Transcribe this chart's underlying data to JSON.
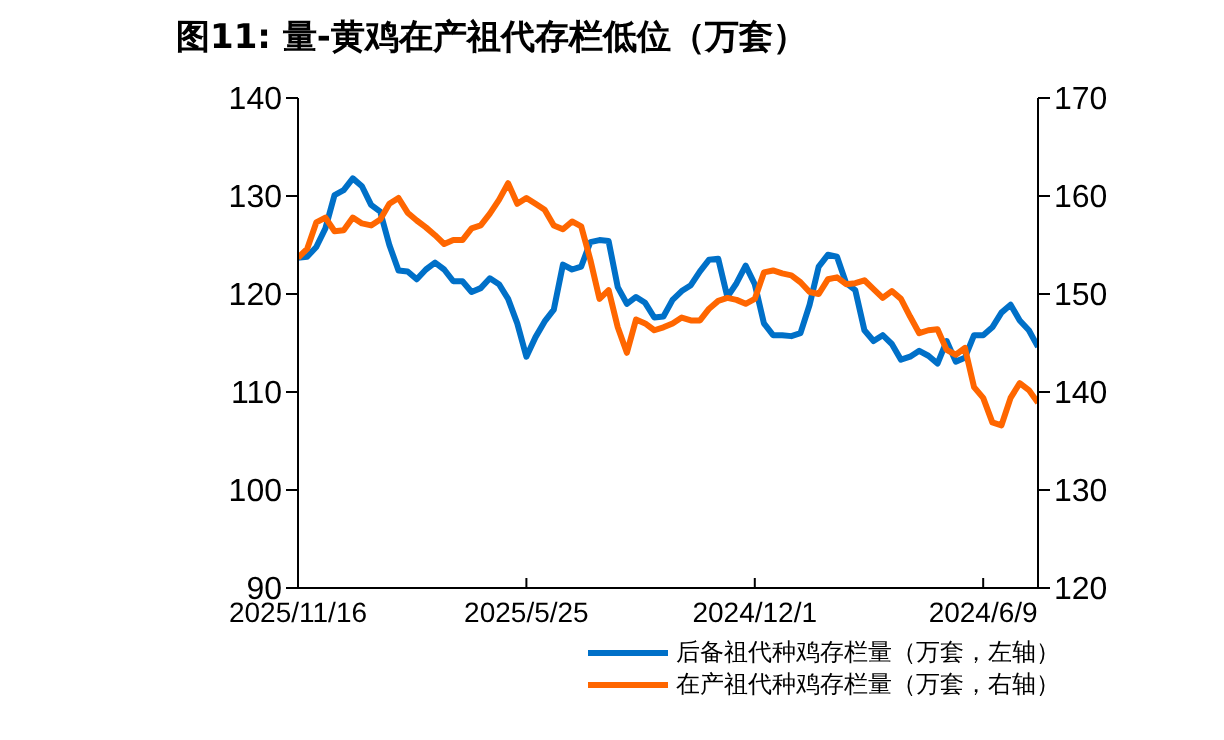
{
  "chart_data": {
    "type": "line",
    "title": "图11:  量-黄鸡在产祖代存栏低位（万套）",
    "categories": [
      "2025/11/16",
      null,
      null,
      null,
      null,
      null,
      null,
      null,
      null,
      null,
      null,
      null,
      null,
      null,
      null,
      null,
      null,
      null,
      null,
      null,
      null,
      null,
      null,
      null,
      null,
      "2025/5/25",
      null,
      null,
      null,
      null,
      null,
      null,
      null,
      null,
      null,
      null,
      null,
      null,
      null,
      null,
      null,
      null,
      null,
      null,
      null,
      null,
      null,
      null,
      null,
      null,
      "2024/12/1",
      null,
      null,
      null,
      null,
      null,
      null,
      null,
      null,
      null,
      null,
      null,
      null,
      null,
      null,
      null,
      null,
      null,
      null,
      null,
      null,
      null,
      null,
      null,
      null,
      "2024/6/9",
      null,
      null,
      null,
      null,
      null,
      null
    ],
    "series": [
      {
        "name": "后备祖代种鸡存栏量（万套，左轴）",
        "color": "#0070c8",
        "values": [
          123.7,
          123.8,
          124.8,
          126.7,
          130.1,
          130.6,
          131.8,
          131.0,
          129.1,
          128.4,
          125.0,
          122.4,
          122.3,
          121.5,
          122.5,
          123.2,
          122.5,
          121.3,
          121.3,
          120.2,
          120.6,
          121.6,
          121.0,
          119.5,
          117.0,
          113.6,
          115.6,
          117.2,
          118.4,
          123.0,
          122.5,
          122.8,
          125.3,
          125.5,
          125.4,
          120.7,
          119.0,
          119.7,
          119.1,
          117.6,
          117.7,
          119.4,
          120.3,
          120.9,
          122.3,
          123.5,
          123.6,
          119.7,
          121.1,
          122.9,
          121.0,
          117.0,
          115.8,
          115.8,
          115.7,
          116.0,
          118.9,
          122.8,
          124.0,
          123.8,
          121.1,
          120.4,
          116.3,
          115.2,
          115.8,
          114.9,
          113.3,
          113.6,
          114.2,
          113.7,
          112.9,
          115.2,
          113.1,
          113.5,
          115.8,
          115.8,
          116.6,
          118.1,
          118.9,
          117.3,
          116.3,
          114.6
        ]
      },
      {
        "name": "在产祖代种鸡存栏量（万套，右轴）",
        "color": "#ff6600",
        "axis": "y2",
        "values": [
          153.7,
          154.6,
          157.3,
          157.8,
          156.4,
          156.5,
          157.8,
          157.2,
          157.0,
          157.6,
          159.2,
          159.8,
          158.3,
          157.5,
          156.8,
          156.0,
          155.1,
          155.5,
          155.5,
          156.7,
          157.0,
          158.2,
          159.6,
          161.3,
          159.2,
          159.8,
          159.2,
          158.6,
          157.0,
          156.6,
          157.4,
          156.9,
          153.5,
          149.5,
          150.4,
          146.6,
          144.0,
          147.4,
          147.0,
          146.3,
          146.6,
          147.0,
          147.6,
          147.3,
          147.3,
          148.5,
          149.3,
          149.6,
          149.4,
          149.0,
          149.5,
          152.2,
          152.4,
          152.1,
          151.9,
          151.2,
          150.2,
          150.0,
          151.5,
          151.7,
          151.0,
          151.1,
          151.4,
          150.5,
          149.6,
          150.3,
          149.5,
          147.7,
          146.0,
          146.3,
          146.4,
          144.3,
          143.8,
          144.5,
          140.5,
          139.4,
          136.9,
          136.6,
          139.4,
          140.9,
          140.2,
          138.9
        ]
      }
    ],
    "ylim": [
      90,
      140
    ],
    "yticks": [
      90,
      100,
      110,
      120,
      130,
      140
    ],
    "y2lim": [
      120,
      170
    ],
    "y2ticks": [
      120,
      130,
      140,
      150,
      160,
      170
    ],
    "grid": false,
    "legend": "bottom",
    "marker": "none",
    "line_style": "solid"
  }
}
